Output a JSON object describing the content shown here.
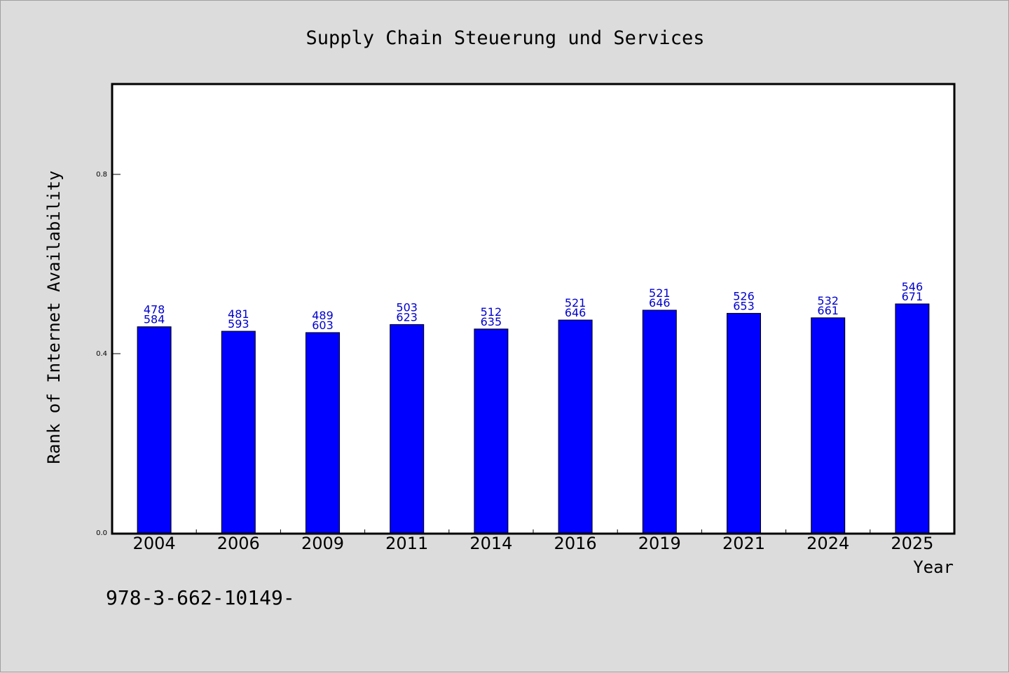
{
  "chart_data": {
    "type": "bar",
    "title": "Supply Chain Steuerung und Services",
    "xlabel": "Year",
    "ylabel": "Rank of Internet Availability",
    "ylim": [
      0,
      1.0
    ],
    "yticks": [
      "0.0",
      "0.4",
      "0.8"
    ],
    "grid": false,
    "categories": [
      "2004",
      "2006",
      "2009",
      "2011",
      "2014",
      "2016",
      "2019",
      "2021",
      "2024",
      "2025"
    ],
    "values": [
      0.46,
      0.45,
      0.447,
      0.465,
      0.455,
      0.475,
      0.497,
      0.49,
      0.48,
      0.511
    ],
    "labels_top": [
      "478",
      "481",
      "489",
      "503",
      "512",
      "521",
      "521",
      "526",
      "532",
      "546"
    ],
    "labels_bottom": [
      "584",
      "593",
      "603",
      "623",
      "635",
      "646",
      "646",
      "653",
      "661",
      "671"
    ],
    "bar_color": "#0000ff",
    "label_color": "#0000cc"
  },
  "footer": {
    "isbn": "978-3-662-10149-"
  }
}
